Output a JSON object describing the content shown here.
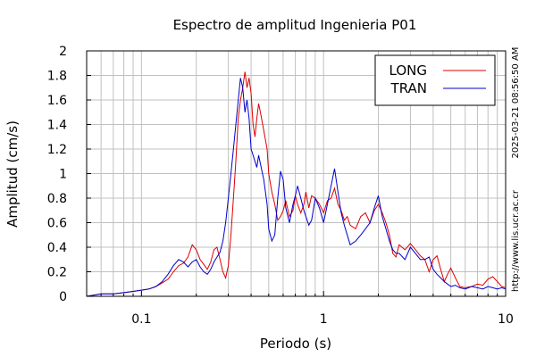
{
  "chart_data": {
    "type": "line",
    "title": "Espectro de amplitud Ingenieria P01",
    "xlabel": "Periodo (s)",
    "ylabel": "Amplitud (cm/s)",
    "xscale": "log",
    "xlim": [
      0.05,
      10
    ],
    "ylim": [
      0,
      2
    ],
    "x_ticks": [
      0.1,
      1,
      10
    ],
    "x_tick_labels": [
      "0.1",
      "1",
      "10"
    ],
    "y_ticks": [
      0,
      0.2,
      0.4,
      0.6,
      0.8,
      1,
      1.2,
      1.4,
      1.6,
      1.8,
      2
    ],
    "y_tick_labels": [
      "0",
      "0.2",
      "0.4",
      "0.6",
      "0.8",
      "1",
      "1.2",
      "1.4",
      "1.6",
      "1.8",
      "2"
    ],
    "grid": true,
    "legend_position": "top-right",
    "side_text_timestamp": "2025-03-21 08:56:50 AM",
    "side_text_url": "http://www.lis.ucr.ac.cr",
    "series": [
      {
        "name": "LONG",
        "color": "#dd0000",
        "points": [
          [
            0.05,
            0.0
          ],
          [
            0.055,
            0.01
          ],
          [
            0.06,
            0.02
          ],
          [
            0.07,
            0.02
          ],
          [
            0.08,
            0.03
          ],
          [
            0.09,
            0.04
          ],
          [
            0.1,
            0.05
          ],
          [
            0.11,
            0.06
          ],
          [
            0.12,
            0.08
          ],
          [
            0.13,
            0.11
          ],
          [
            0.14,
            0.14
          ],
          [
            0.15,
            0.2
          ],
          [
            0.16,
            0.25
          ],
          [
            0.17,
            0.27
          ],
          [
            0.18,
            0.32
          ],
          [
            0.19,
            0.42
          ],
          [
            0.2,
            0.38
          ],
          [
            0.21,
            0.3
          ],
          [
            0.22,
            0.26
          ],
          [
            0.23,
            0.22
          ],
          [
            0.24,
            0.28
          ],
          [
            0.25,
            0.38
          ],
          [
            0.26,
            0.4
          ],
          [
            0.27,
            0.3
          ],
          [
            0.28,
            0.2
          ],
          [
            0.29,
            0.15
          ],
          [
            0.3,
            0.25
          ],
          [
            0.31,
            0.5
          ],
          [
            0.32,
            0.8
          ],
          [
            0.33,
            1.1
          ],
          [
            0.34,
            1.45
          ],
          [
            0.35,
            1.6
          ],
          [
            0.36,
            1.7
          ],
          [
            0.37,
            1.83
          ],
          [
            0.38,
            1.7
          ],
          [
            0.39,
            1.78
          ],
          [
            0.4,
            1.65
          ],
          [
            0.41,
            1.4
          ],
          [
            0.42,
            1.3
          ],
          [
            0.43,
            1.45
          ],
          [
            0.44,
            1.57
          ],
          [
            0.45,
            1.5
          ],
          [
            0.47,
            1.35
          ],
          [
            0.49,
            1.2
          ],
          [
            0.5,
            1.0
          ],
          [
            0.52,
            0.85
          ],
          [
            0.54,
            0.75
          ],
          [
            0.56,
            0.62
          ],
          [
            0.58,
            0.65
          ],
          [
            0.6,
            0.7
          ],
          [
            0.62,
            0.78
          ],
          [
            0.65,
            0.65
          ],
          [
            0.68,
            0.7
          ],
          [
            0.7,
            0.82
          ],
          [
            0.72,
            0.75
          ],
          [
            0.75,
            0.68
          ],
          [
            0.78,
            0.75
          ],
          [
            0.8,
            0.85
          ],
          [
            0.83,
            0.72
          ],
          [
            0.86,
            0.82
          ],
          [
            0.9,
            0.8
          ],
          [
            0.95,
            0.75
          ],
          [
            1.0,
            0.68
          ],
          [
            1.05,
            0.78
          ],
          [
            1.1,
            0.8
          ],
          [
            1.15,
            0.88
          ],
          [
            1.2,
            0.75
          ],
          [
            1.25,
            0.7
          ],
          [
            1.3,
            0.62
          ],
          [
            1.35,
            0.65
          ],
          [
            1.4,
            0.58
          ],
          [
            1.5,
            0.55
          ],
          [
            1.6,
            0.65
          ],
          [
            1.7,
            0.68
          ],
          [
            1.8,
            0.6
          ],
          [
            1.9,
            0.7
          ],
          [
            2.0,
            0.75
          ],
          [
            2.1,
            0.68
          ],
          [
            2.2,
            0.6
          ],
          [
            2.3,
            0.5
          ],
          [
            2.4,
            0.35
          ],
          [
            2.5,
            0.32
          ],
          [
            2.6,
            0.42
          ],
          [
            2.8,
            0.38
          ],
          [
            3.0,
            0.43
          ],
          [
            3.2,
            0.38
          ],
          [
            3.4,
            0.33
          ],
          [
            3.6,
            0.3
          ],
          [
            3.8,
            0.2
          ],
          [
            4.0,
            0.3
          ],
          [
            4.2,
            0.33
          ],
          [
            4.4,
            0.22
          ],
          [
            4.6,
            0.12
          ],
          [
            4.8,
            0.18
          ],
          [
            5.0,
            0.23
          ],
          [
            5.3,
            0.15
          ],
          [
            5.6,
            0.08
          ],
          [
            6.0,
            0.07
          ],
          [
            6.5,
            0.08
          ],
          [
            7.0,
            0.1
          ],
          [
            7.5,
            0.09
          ],
          [
            8.0,
            0.14
          ],
          [
            8.5,
            0.16
          ],
          [
            9.0,
            0.12
          ],
          [
            9.5,
            0.08
          ],
          [
            10.0,
            0.07
          ]
        ]
      },
      {
        "name": "TRAN",
        "color": "#0000cc",
        "points": [
          [
            0.05,
            0.0
          ],
          [
            0.055,
            0.01
          ],
          [
            0.06,
            0.02
          ],
          [
            0.07,
            0.02
          ],
          [
            0.08,
            0.03
          ],
          [
            0.09,
            0.04
          ],
          [
            0.1,
            0.05
          ],
          [
            0.11,
            0.06
          ],
          [
            0.12,
            0.08
          ],
          [
            0.13,
            0.12
          ],
          [
            0.14,
            0.18
          ],
          [
            0.15,
            0.25
          ],
          [
            0.16,
            0.3
          ],
          [
            0.17,
            0.28
          ],
          [
            0.18,
            0.24
          ],
          [
            0.19,
            0.28
          ],
          [
            0.2,
            0.3
          ],
          [
            0.21,
            0.24
          ],
          [
            0.22,
            0.2
          ],
          [
            0.23,
            0.18
          ],
          [
            0.24,
            0.22
          ],
          [
            0.25,
            0.28
          ],
          [
            0.26,
            0.32
          ],
          [
            0.27,
            0.36
          ],
          [
            0.28,
            0.45
          ],
          [
            0.29,
            0.6
          ],
          [
            0.3,
            0.8
          ],
          [
            0.31,
            1.0
          ],
          [
            0.32,
            1.2
          ],
          [
            0.33,
            1.4
          ],
          [
            0.34,
            1.6
          ],
          [
            0.35,
            1.78
          ],
          [
            0.36,
            1.7
          ],
          [
            0.37,
            1.5
          ],
          [
            0.38,
            1.6
          ],
          [
            0.39,
            1.45
          ],
          [
            0.4,
            1.2
          ],
          [
            0.41,
            1.15
          ],
          [
            0.42,
            1.1
          ],
          [
            0.43,
            1.05
          ],
          [
            0.44,
            1.15
          ],
          [
            0.45,
            1.08
          ],
          [
            0.47,
            0.95
          ],
          [
            0.49,
            0.75
          ],
          [
            0.5,
            0.55
          ],
          [
            0.52,
            0.45
          ],
          [
            0.54,
            0.5
          ],
          [
            0.56,
            0.8
          ],
          [
            0.58,
            1.02
          ],
          [
            0.6,
            0.95
          ],
          [
            0.62,
            0.72
          ],
          [
            0.65,
            0.6
          ],
          [
            0.68,
            0.75
          ],
          [
            0.7,
            0.82
          ],
          [
            0.72,
            0.9
          ],
          [
            0.75,
            0.8
          ],
          [
            0.78,
            0.7
          ],
          [
            0.8,
            0.65
          ],
          [
            0.83,
            0.58
          ],
          [
            0.86,
            0.62
          ],
          [
            0.9,
            0.8
          ],
          [
            0.95,
            0.72
          ],
          [
            1.0,
            0.6
          ],
          [
            1.05,
            0.75
          ],
          [
            1.1,
            0.9
          ],
          [
            1.15,
            1.04
          ],
          [
            1.2,
            0.85
          ],
          [
            1.25,
            0.68
          ],
          [
            1.3,
            0.58
          ],
          [
            1.35,
            0.5
          ],
          [
            1.4,
            0.42
          ],
          [
            1.5,
            0.45
          ],
          [
            1.6,
            0.5
          ],
          [
            1.7,
            0.55
          ],
          [
            1.8,
            0.6
          ],
          [
            1.9,
            0.72
          ],
          [
            2.0,
            0.82
          ],
          [
            2.1,
            0.65
          ],
          [
            2.2,
            0.55
          ],
          [
            2.3,
            0.45
          ],
          [
            2.4,
            0.38
          ],
          [
            2.5,
            0.35
          ],
          [
            2.6,
            0.35
          ],
          [
            2.8,
            0.3
          ],
          [
            3.0,
            0.4
          ],
          [
            3.2,
            0.35
          ],
          [
            3.4,
            0.3
          ],
          [
            3.6,
            0.3
          ],
          [
            3.8,
            0.32
          ],
          [
            4.0,
            0.22
          ],
          [
            4.2,
            0.18
          ],
          [
            4.4,
            0.15
          ],
          [
            4.6,
            0.12
          ],
          [
            4.8,
            0.1
          ],
          [
            5.0,
            0.08
          ],
          [
            5.3,
            0.09
          ],
          [
            5.6,
            0.07
          ],
          [
            6.0,
            0.06
          ],
          [
            6.5,
            0.08
          ],
          [
            7.0,
            0.07
          ],
          [
            7.5,
            0.06
          ],
          [
            8.0,
            0.08
          ],
          [
            8.5,
            0.07
          ],
          [
            9.0,
            0.06
          ],
          [
            9.5,
            0.07
          ],
          [
            10.0,
            0.06
          ]
        ]
      }
    ]
  }
}
